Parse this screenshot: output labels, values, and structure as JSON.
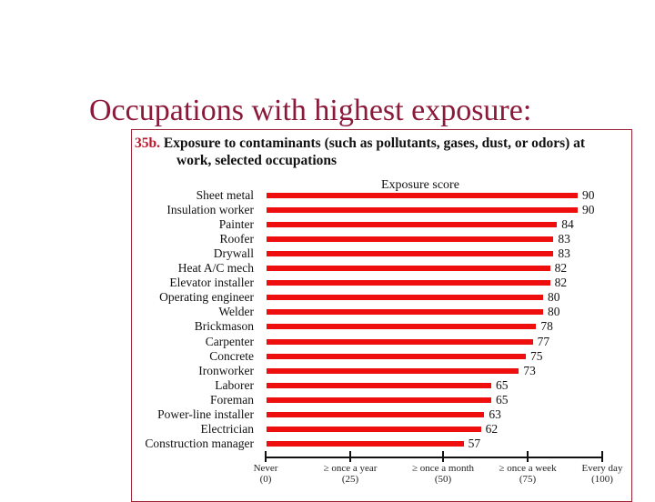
{
  "slide": {
    "title": "Occupations with highest exposure:"
  },
  "figure": {
    "number": "35b.",
    "title_line1": "Exposure to contaminants (such as pollutants, gases, dust, or odors) at",
    "title_line2": "work, selected  occupations",
    "axis_title": "Exposure score"
  },
  "colors": {
    "bar": "#ee0e0e",
    "slide_title": "#8b1a3a",
    "fig_number": "#c0152b",
    "border": "#9b2335"
  },
  "chart_data": {
    "type": "bar",
    "orientation": "horizontal",
    "title": "35b. Exposure to contaminants (such as pollutants, gases, dust, or odors) at work, selected occupations",
    "xlabel": "Exposure score",
    "ylabel": "",
    "xlim": [
      0,
      100
    ],
    "categories": [
      "Sheet metal",
      "Insulation worker",
      "Painter",
      "Roofer",
      "Drywall",
      "Heat A/C mech",
      "Elevator installer",
      "Operating engineer",
      "Welder",
      "Brickmason",
      "Carpenter",
      "Concrete",
      "Ironworker",
      "Laborer",
      "Foreman",
      "Power-line installer",
      "Electrician",
      "Construction manager"
    ],
    "values": [
      90,
      90,
      84,
      83,
      83,
      82,
      82,
      80,
      80,
      78,
      77,
      75,
      73,
      65,
      65,
      63,
      62,
      57
    ],
    "x_ticks": [
      {
        "value": 0,
        "label": "Never",
        "sub": "(0)"
      },
      {
        "value": 25,
        "label": "≥ once a year",
        "sub": "(25)"
      },
      {
        "value": 50,
        "label": "≥ once a month",
        "sub": "(50)"
      },
      {
        "value": 75,
        "label": "≥ once a week",
        "sub": "(75)"
      },
      {
        "value": 100,
        "label": "Every day",
        "sub": "(100)"
      }
    ],
    "data_labels": true,
    "grid": false,
    "legend": "none"
  },
  "rows": [
    {
      "label": "Sheet metal",
      "value": "90"
    },
    {
      "label": "Insulation worker",
      "value": "90"
    },
    {
      "label": "Painter",
      "value": "84"
    },
    {
      "label": "Roofer",
      "value": "83"
    },
    {
      "label": "Drywall",
      "value": "83"
    },
    {
      "label": "Heat A/C mech",
      "value": "82"
    },
    {
      "label": "Elevator installer",
      "value": "82"
    },
    {
      "label": "Operating engineer",
      "value": "80"
    },
    {
      "label": "Welder",
      "value": "80"
    },
    {
      "label": "Brickmason",
      "value": "78"
    },
    {
      "label": "Carpenter",
      "value": "77"
    },
    {
      "label": "Concrete",
      "value": "75"
    },
    {
      "label": "Ironworker",
      "value": "73"
    },
    {
      "label": "Laborer",
      "value": "65"
    },
    {
      "label": "Foreman",
      "value": "65"
    },
    {
      "label": "Power-line installer",
      "value": "63"
    },
    {
      "label": "Electrician",
      "value": "62"
    },
    {
      "label": "Construction manager",
      "value": "57"
    }
  ],
  "axis": {
    "ticks": [
      {
        "label": "Never",
        "sub": "(0)"
      },
      {
        "label": "≥ once a year",
        "sub": "(25)"
      },
      {
        "label": "≥ once a month",
        "sub": "(50)"
      },
      {
        "label": "≥ once a week",
        "sub": "(75)"
      },
      {
        "label": "Every day",
        "sub": "(100)"
      }
    ]
  }
}
